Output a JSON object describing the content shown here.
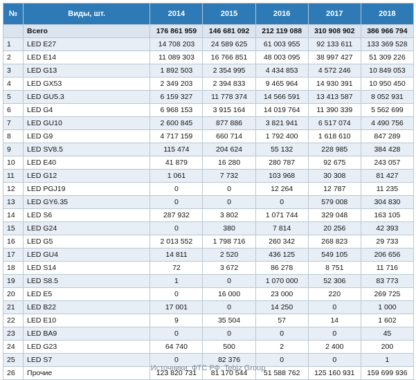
{
  "table": {
    "headers": {
      "num": "№",
      "name": "Виды, шт.",
      "years": [
        "2014",
        "2015",
        "2016",
        "2017",
        "2018"
      ]
    },
    "total": {
      "num": "",
      "name": "Всего",
      "values": [
        "176 861 959",
        "146 681 092",
        "212 119 088",
        "310 908 902",
        "386 966 794"
      ]
    },
    "rows": [
      {
        "num": "1",
        "name": "LED E27",
        "values": [
          "14 708 203",
          "24 589 625",
          "61 003 955",
          "92 133 611",
          "133 369 528"
        ]
      },
      {
        "num": "2",
        "name": "LED E14",
        "values": [
          "11 089 303",
          "16 766 851",
          "48 003 095",
          "38 997 427",
          "51 309 226"
        ]
      },
      {
        "num": "3",
        "name": "LED G13",
        "values": [
          "1 892 503",
          "2 354 995",
          "4 434 853",
          "4 572 246",
          "10 849 053"
        ]
      },
      {
        "num": "4",
        "name": "LED GX53",
        "values": [
          "2 349 203",
          "2 394 833",
          "9 465 964",
          "14 930 391",
          "10 950 450"
        ]
      },
      {
        "num": "5",
        "name": "LED GU5.3",
        "values": [
          "6 159 327",
          "11 778 374",
          "14 566 591",
          "13 413 587",
          "8 052 931"
        ]
      },
      {
        "num": "6",
        "name": "LED G4",
        "values": [
          "6 968 153",
          "3 915 164",
          "14 019 764",
          "11 390 339",
          "5 562 699"
        ]
      },
      {
        "num": "7",
        "name": "LED GU10",
        "values": [
          "2 600 845",
          "877 886",
          "3 821 941",
          "6 517 074",
          "4 490 756"
        ]
      },
      {
        "num": "8",
        "name": "LED G9",
        "values": [
          "4 717 159",
          "660 714",
          "1 792 400",
          "1 618 610",
          "847 289"
        ]
      },
      {
        "num": "9",
        "name": "LED SV8.5",
        "values": [
          "115 474",
          "204 624",
          "55 132",
          "228 985",
          "384 428"
        ]
      },
      {
        "num": "10",
        "name": "LED E40",
        "values": [
          "41 879",
          "16 280",
          "280 787",
          "92 675",
          "243 057"
        ]
      },
      {
        "num": "11",
        "name": "LED G12",
        "values": [
          "1 061",
          "7 732",
          "103 968",
          "30 308",
          "81 427"
        ]
      },
      {
        "num": "12",
        "name": "LED PGJ19",
        "values": [
          "0",
          "0",
          "12 264",
          "12 787",
          "11 235"
        ]
      },
      {
        "num": "13",
        "name": "LED GY6.35",
        "values": [
          "0",
          "0",
          "0",
          "579 008",
          "304 830"
        ]
      },
      {
        "num": "14",
        "name": "LED S6",
        "values": [
          "287 932",
          "3 802",
          "1 071 744",
          "329 048",
          "163 105"
        ]
      },
      {
        "num": "15",
        "name": "LED G24",
        "values": [
          "0",
          "380",
          "7 814",
          "20 256",
          "42 393"
        ]
      },
      {
        "num": "16",
        "name": "LED G5",
        "values": [
          "2 013 552",
          "1 798 716",
          "260 342",
          "268 823",
          "29 733"
        ]
      },
      {
        "num": "17",
        "name": "LED GU4",
        "values": [
          "14 811",
          "2 520",
          "436 125",
          "549 105",
          "206 656"
        ]
      },
      {
        "num": "18",
        "name": "LED S14",
        "values": [
          "72",
          "3 672",
          "86 278",
          "8 751",
          "11 716"
        ]
      },
      {
        "num": "19",
        "name": "LED S8.5",
        "values": [
          "1",
          "0",
          "1 070 000",
          "52 306",
          "83 773"
        ]
      },
      {
        "num": "20",
        "name": "LED E5",
        "values": [
          "0",
          "16 000",
          "23 000",
          "220",
          "269 725"
        ]
      },
      {
        "num": "21",
        "name": "LED B22",
        "values": [
          "17 001",
          "0",
          "14 250",
          "0",
          "1 000"
        ]
      },
      {
        "num": "22",
        "name": "LED E10",
        "values": [
          "9",
          "35 504",
          "57",
          "14",
          "1 602"
        ]
      },
      {
        "num": "23",
        "name": "LED BA9",
        "values": [
          "0",
          "0",
          "0",
          "0",
          "45"
        ]
      },
      {
        "num": "24",
        "name": "LED G23",
        "values": [
          "64 740",
          "500",
          "2",
          "2 400",
          "200"
        ]
      },
      {
        "num": "25",
        "name": "LED S7",
        "values": [
          "0",
          "82 376",
          "0",
          "0",
          "1"
        ]
      },
      {
        "num": "26",
        "name": "Прочие",
        "values": [
          "123 820 731",
          "81 170 544",
          "51 588 762",
          "125 160 931",
          "159 699 936"
        ]
      }
    ]
  },
  "source": "Источники: ФТС РФ, Tebiz Group",
  "colors": {
    "header_bg": "#2e7ab6",
    "header_text": "#ffffff",
    "row_alt_bg": "#e8eef6",
    "border": "#b9c6d3"
  }
}
